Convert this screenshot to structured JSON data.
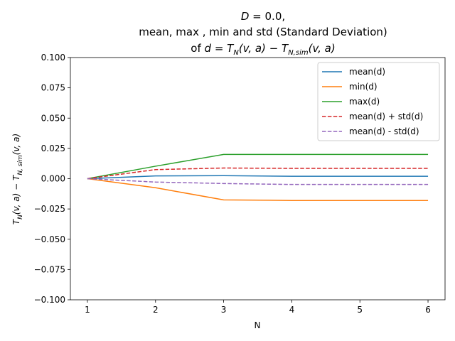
{
  "chart_data": {
    "type": "line",
    "title_lines": [
      "D = 0.0,",
      "mean, max , min and std (Standard Deviation)",
      "of d = T_N(v, a) - T_N,sim(v, a)"
    ],
    "xlabel": "N",
    "ylabel": "T_N(v, a) - T_N,sim(v, a)",
    "x": [
      1,
      2,
      3,
      4,
      5,
      6
    ],
    "xlim": [
      0.75,
      6.25
    ],
    "ylim": [
      -0.1,
      0.1
    ],
    "xticks": [
      "1",
      "2",
      "3",
      "4",
      "5",
      "6"
    ],
    "yticks": [
      "−0.100",
      "−0.075",
      "−0.050",
      "−0.025",
      "0.000",
      "0.025",
      "0.050",
      "0.075",
      "0.100"
    ],
    "ytick_values": [
      -0.1,
      -0.075,
      -0.05,
      -0.025,
      0.0,
      0.025,
      0.05,
      0.075,
      0.1
    ],
    "grid": false,
    "legend_position": "top-right",
    "series": [
      {
        "name": "mean(d)",
        "color": "#1f77b4",
        "dash": "solid",
        "values": [
          0.0,
          0.0023,
          0.0025,
          0.002,
          0.002,
          0.002
        ]
      },
      {
        "name": "min(d)",
        "color": "#ff7f0e",
        "dash": "solid",
        "values": [
          0.0,
          -0.0075,
          -0.0175,
          -0.018,
          -0.018,
          -0.018
        ]
      },
      {
        "name": "max(d)",
        "color": "#2ca02c",
        "dash": "solid",
        "values": [
          0.0,
          0.0103,
          0.02,
          0.02,
          0.02,
          0.02
        ]
      },
      {
        "name": "mean(d) + std(d)",
        "color": "#d62728",
        "dash": "dashed",
        "values": [
          0.0,
          0.0075,
          0.0088,
          0.0085,
          0.0085,
          0.0085
        ]
      },
      {
        "name": "mean(d) - std(d)",
        "color": "#9467bd",
        "dash": "dashed",
        "values": [
          0.0,
          -0.0028,
          -0.004,
          -0.0048,
          -0.0048,
          -0.0048
        ]
      }
    ]
  }
}
